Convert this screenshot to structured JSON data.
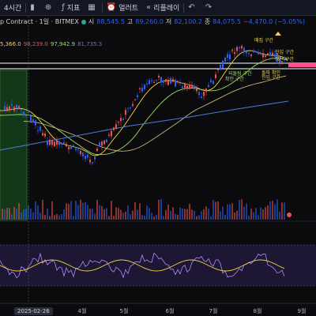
{
  "toolbar": {
    "interval": "4시간",
    "chart_type_icon": "candles-icon",
    "indicators_label": "지표",
    "alert_label": "얼러트",
    "replay_label": "리플레이",
    "undo_icon": "undo-icon",
    "redo_icon": "redo-icon"
  },
  "legend": {
    "symbol": "p Contract · 1일 · BITMEX",
    "open_label": "시",
    "open": "88,545.5",
    "high_label": "고",
    "high": "89,260.0",
    "low_label": "저",
    "low": "82,100.2",
    "close_label": "종",
    "close": "84,075.5",
    "change": "−4,470.0 (−5.05%)"
  },
  "ma_legend": {
    "v1": "5,366.0",
    "v2": "98,239.0",
    "v3": "97,942.9",
    "v4": "81,735.3"
  },
  "annotations": [
    {
      "text": "매집 구간",
      "color": "#f5d547"
    },
    {
      "text": "진입 구간",
      "color": "#f5d547"
    },
    {
      "text": "청산 구간",
      "color": "#f5d547"
    },
    {
      "text": "되돌림 구간",
      "color": "#9be35f"
    },
    {
      "text": "확인 구간",
      "color": "#9be35f"
    },
    {
      "text": "돌파 확인",
      "color": "#f5d547"
    },
    {
      "text": "진입 구간",
      "color": "#f5d547"
    }
  ],
  "x_axis": {
    "ticks": [
      "4월",
      "5월",
      "6월",
      "7월",
      "8월",
      "9월"
    ],
    "crosshair_date": "2025-02-26"
  },
  "colors": {
    "up": "#2962ff",
    "down": "#ef5350",
    "ma_fast": "#f5d547",
    "ma_mid": "#9be35f",
    "ma_slow": "#4a7fd6",
    "ma_long": "#c9b17a",
    "rsi_line": "#b388ff",
    "rsi_signal": "#f5d547",
    "hline": "#ffffff",
    "target_line": "#ff4d8d",
    "highlight": "#2e7d32"
  }
}
